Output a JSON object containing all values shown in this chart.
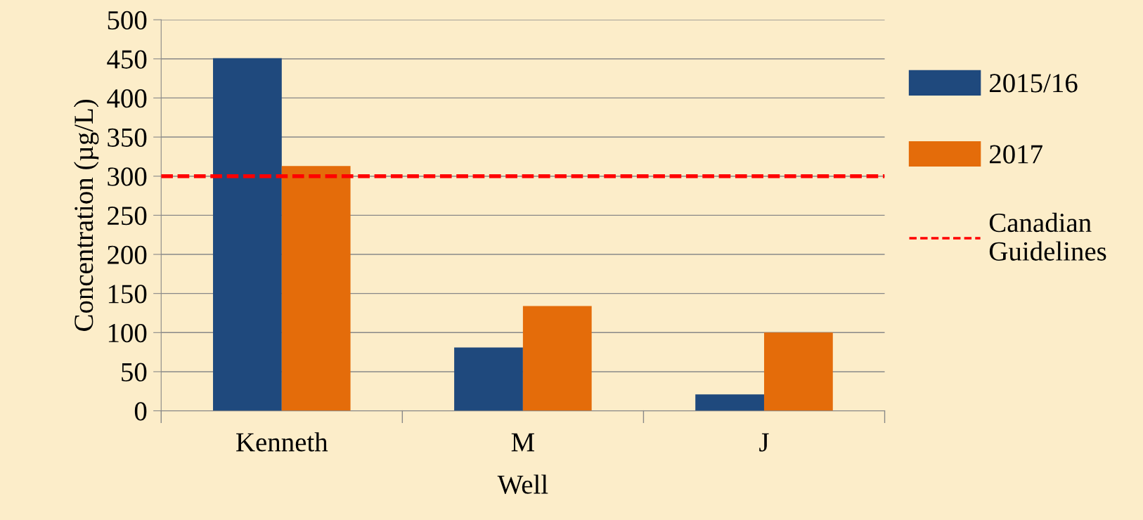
{
  "chart_data": {
    "type": "bar",
    "xlabel": "Well",
    "ylabel": "Concentration (µg/L)",
    "categories": [
      "Kenneth",
      "M",
      "J"
    ],
    "series": [
      {
        "name": "2015/16",
        "color": "#1f497d",
        "values": [
          451,
          81,
          21
        ]
      },
      {
        "name": "2017",
        "color": "#e46c0a",
        "values": [
          313,
          134,
          100
        ]
      }
    ],
    "ylim": [
      0,
      500
    ],
    "yticks": [
      0,
      50,
      100,
      150,
      200,
      250,
      300,
      350,
      400,
      450,
      500
    ],
    "grid": "y",
    "legend": "right",
    "ref_lines": [
      {
        "axis": "y",
        "value": 300,
        "label": "Canadian Guidelines",
        "color": "#ff0000",
        "line_style": "dashed"
      }
    ]
  }
}
